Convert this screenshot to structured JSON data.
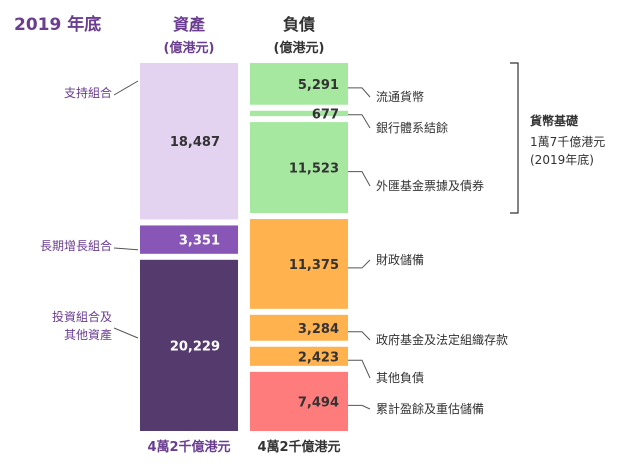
{
  "title": "2019 年底",
  "colors": {
    "purple_text": "#6b3d91",
    "support": "#e3d3f1",
    "long_term": "#8856b6",
    "investment": "#553a6e",
    "currency": "#a6e8a0",
    "fiscal": "#ffb24e",
    "other": "#ffb24e",
    "accumulated": "#ff7c7c",
    "label_text": "#333333",
    "value_text": "#333333"
  },
  "chart_data": {
    "type": "bar",
    "stacked": true,
    "unit": "億港元",
    "categories": [
      "資產",
      "負債"
    ],
    "subtitles": [
      "(億港元)",
      "(億港元)"
    ],
    "totals": [
      "4萬2千億港元",
      "4萬2千億港元"
    ],
    "assets": [
      {
        "name": "支持組合",
        "value": 18487,
        "value_label": "18,487",
        "color": "#e3d3f1",
        "text": "dark"
      },
      {
        "name": "長期增長組合",
        "value": 3351,
        "value_label": "3,351",
        "color": "#8856b6",
        "text": "light"
      },
      {
        "name": "投資組合及其他資產",
        "lines": [
          "投資組合及",
          "其他資產"
        ],
        "value": 20229,
        "value_label": "20,229",
        "color": "#553a6e",
        "text": "light"
      }
    ],
    "liabilities": [
      {
        "name": "流通貨幣",
        "value": 5291,
        "value_label": "5,291",
        "color": "#a6e8a0"
      },
      {
        "name": "銀行體系結餘",
        "value": 677,
        "value_label": "677",
        "color": "#a6e8a0"
      },
      {
        "name": "外匯基金票據及債券",
        "value": 11523,
        "value_label": "11,523",
        "color": "#a6e8a0"
      },
      {
        "name": "財政儲備",
        "value": 11375,
        "value_label": "11,375",
        "color": "#ffb24e"
      },
      {
        "name": "政府基金及法定組織存款",
        "value": 3284,
        "value_label": "3,284",
        "color": "#ffb24e"
      },
      {
        "name": "其他負債",
        "value": 2423,
        "value_label": "2,423",
        "color": "#ffb24e"
      },
      {
        "name": "累計盈餘及重估儲備",
        "value": 7494,
        "value_label": "7,494",
        "color": "#ff7c7c"
      }
    ],
    "bracket": {
      "title": "貨幣基礎",
      "lines": [
        "1萬7千億港元",
        "(2019年底)"
      ],
      "covers": [
        "流通貨幣",
        "銀行體系結餘",
        "外匯基金票據及債券"
      ]
    }
  }
}
